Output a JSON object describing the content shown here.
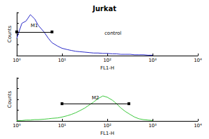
{
  "chart_data": [
    {
      "type": "line",
      "title": "Jurkat",
      "x_label": "FL1-H",
      "y_label": "Counts",
      "log": "x",
      "grid": false,
      "tick_labels": "x",
      "x": [
        1,
        1.3,
        1.6,
        2,
        2.5,
        3,
        4,
        5,
        6,
        8,
        10,
        13,
        16,
        20,
        25,
        32,
        40,
        50,
        63,
        80,
        100,
        130,
        160,
        200,
        250,
        320,
        400,
        500,
        630,
        800,
        1000
      ],
      "series": [
        {
          "name": "control",
          "color": "#2b2bc8",
          "values": [
            40,
            75,
            80,
            95,
            85,
            70,
            55,
            40,
            30,
            22,
            17,
            14,
            12,
            10,
            9,
            8,
            7,
            6,
            6,
            5,
            5,
            4,
            4,
            3,
            3,
            3,
            2,
            2,
            2,
            1,
            1
          ]
        }
      ],
      "markers": [
        {
          "label": "M1",
          "range": [
            1,
            6
          ],
          "y": 55
        }
      ],
      "xlim": [
        1,
        10000
      ],
      "xticks": [
        {
          "value": 1,
          "label": "10⁰"
        },
        {
          "value": 10,
          "label": "10¹"
        },
        {
          "value": 100,
          "label": "10²"
        },
        {
          "value": 1000,
          "label": "10³"
        },
        {
          "value": 10000,
          "label": "10⁴"
        }
      ],
      "ylim": [
        0,
        100
      ],
      "yticks": [
        0,
        25,
        50,
        75,
        100
      ]
    },
    {
      "type": "line",
      "x_label": "FL1-H",
      "y_label": "Counts",
      "log": "x",
      "grid": false,
      "tick_labels": "x",
      "x": [
        1,
        1.3,
        1.6,
        2,
        2.5,
        3,
        4,
        5,
        6,
        8,
        10,
        13,
        16,
        20,
        25,
        32,
        40,
        50,
        63,
        80,
        100,
        130,
        160,
        200,
        250,
        320,
        400,
        500,
        630,
        800,
        1000
      ],
      "series": [
        {
          "color": "#3cc83c",
          "values": [
            1,
            1,
            2,
            2,
            3,
            3,
            4,
            5,
            6,
            7,
            9,
            12,
            15,
            19,
            24,
            30,
            37,
            44,
            52,
            58,
            55,
            48,
            40,
            30,
            22,
            15,
            9,
            5,
            3,
            2,
            1
          ]
        }
      ],
      "markers": [
        {
          "label": "M2",
          "range": [
            10,
            300
          ],
          "y": 40
        }
      ],
      "xlim": [
        1,
        10000
      ],
      "xticks": [
        {
          "value": 1,
          "label": "10⁰"
        },
        {
          "value": 10,
          "label": "10¹"
        },
        {
          "value": 100,
          "label": "10²"
        },
        {
          "value": 1000,
          "label": "10³"
        },
        {
          "value": 10000,
          "label": "10⁴"
        }
      ],
      "ylim": [
        0,
        100
      ],
      "yticks": [
        0,
        25,
        50,
        75,
        100
      ]
    }
  ]
}
